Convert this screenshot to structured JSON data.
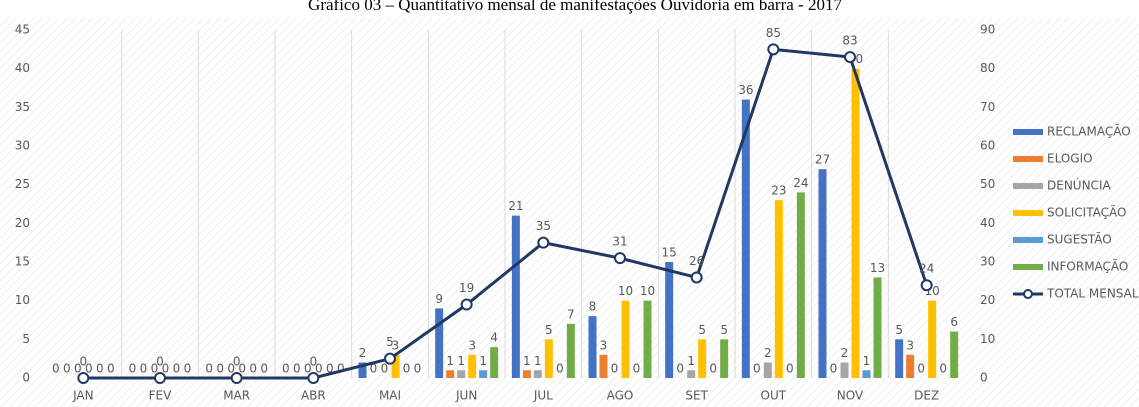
{
  "chart_data": {
    "type": "bar",
    "title": "Gráfico 03 – Quantitativo mensal de manifestações Ouvidoria em barra - 2017",
    "categories": [
      "JAN",
      "FEV",
      "MAR",
      "ABR",
      "MAI",
      "JUN",
      "JUL",
      "AGO",
      "SET",
      "OUT",
      "NOV",
      "DEZ"
    ],
    "series": [
      {
        "name": "RECLAMAÇÃO",
        "color": "#4472c4",
        "values": [
          0,
          0,
          0,
          0,
          2,
          9,
          21,
          8,
          15,
          36,
          27,
          5
        ]
      },
      {
        "name": "ELOGIO",
        "color": "#ed7d31",
        "values": [
          0,
          0,
          0,
          0,
          0,
          1,
          1,
          3,
          0,
          0,
          0,
          3
        ]
      },
      {
        "name": "DENÚNCIA",
        "color": "#a5a5a5",
        "values": [
          0,
          0,
          0,
          0,
          0,
          1,
          1,
          0,
          1,
          2,
          2,
          0
        ]
      },
      {
        "name": "SOLICITAÇÃO",
        "color": "#ffc000",
        "values": [
          0,
          0,
          0,
          0,
          3,
          3,
          5,
          10,
          5,
          23,
          40,
          10
        ]
      },
      {
        "name": "SUGESTÃO",
        "color": "#5b9bd5",
        "values": [
          0,
          0,
          0,
          0,
          0,
          1,
          0,
          0,
          0,
          0,
          1,
          0
        ]
      },
      {
        "name": "INFORMAÇÃO",
        "color": "#70ad47",
        "values": [
          0,
          0,
          0,
          0,
          0,
          4,
          7,
          10,
          5,
          24,
          13,
          6
        ]
      },
      {
        "name": "TOTAL MENSAL",
        "color": "#203864",
        "type": "line",
        "axis": "y2",
        "values": [
          0,
          0,
          0,
          0,
          5,
          19,
          35,
          31,
          26,
          85,
          83,
          24
        ]
      }
    ],
    "ylim": [
      0,
      45
    ],
    "yticks": [
      0,
      5,
      10,
      15,
      20,
      25,
      30,
      35,
      40,
      45
    ],
    "y2lim": [
      0,
      90
    ],
    "y2ticks": [
      0,
      10,
      20,
      30,
      40,
      50,
      60,
      70,
      80,
      90
    ],
    "legend": "right"
  }
}
